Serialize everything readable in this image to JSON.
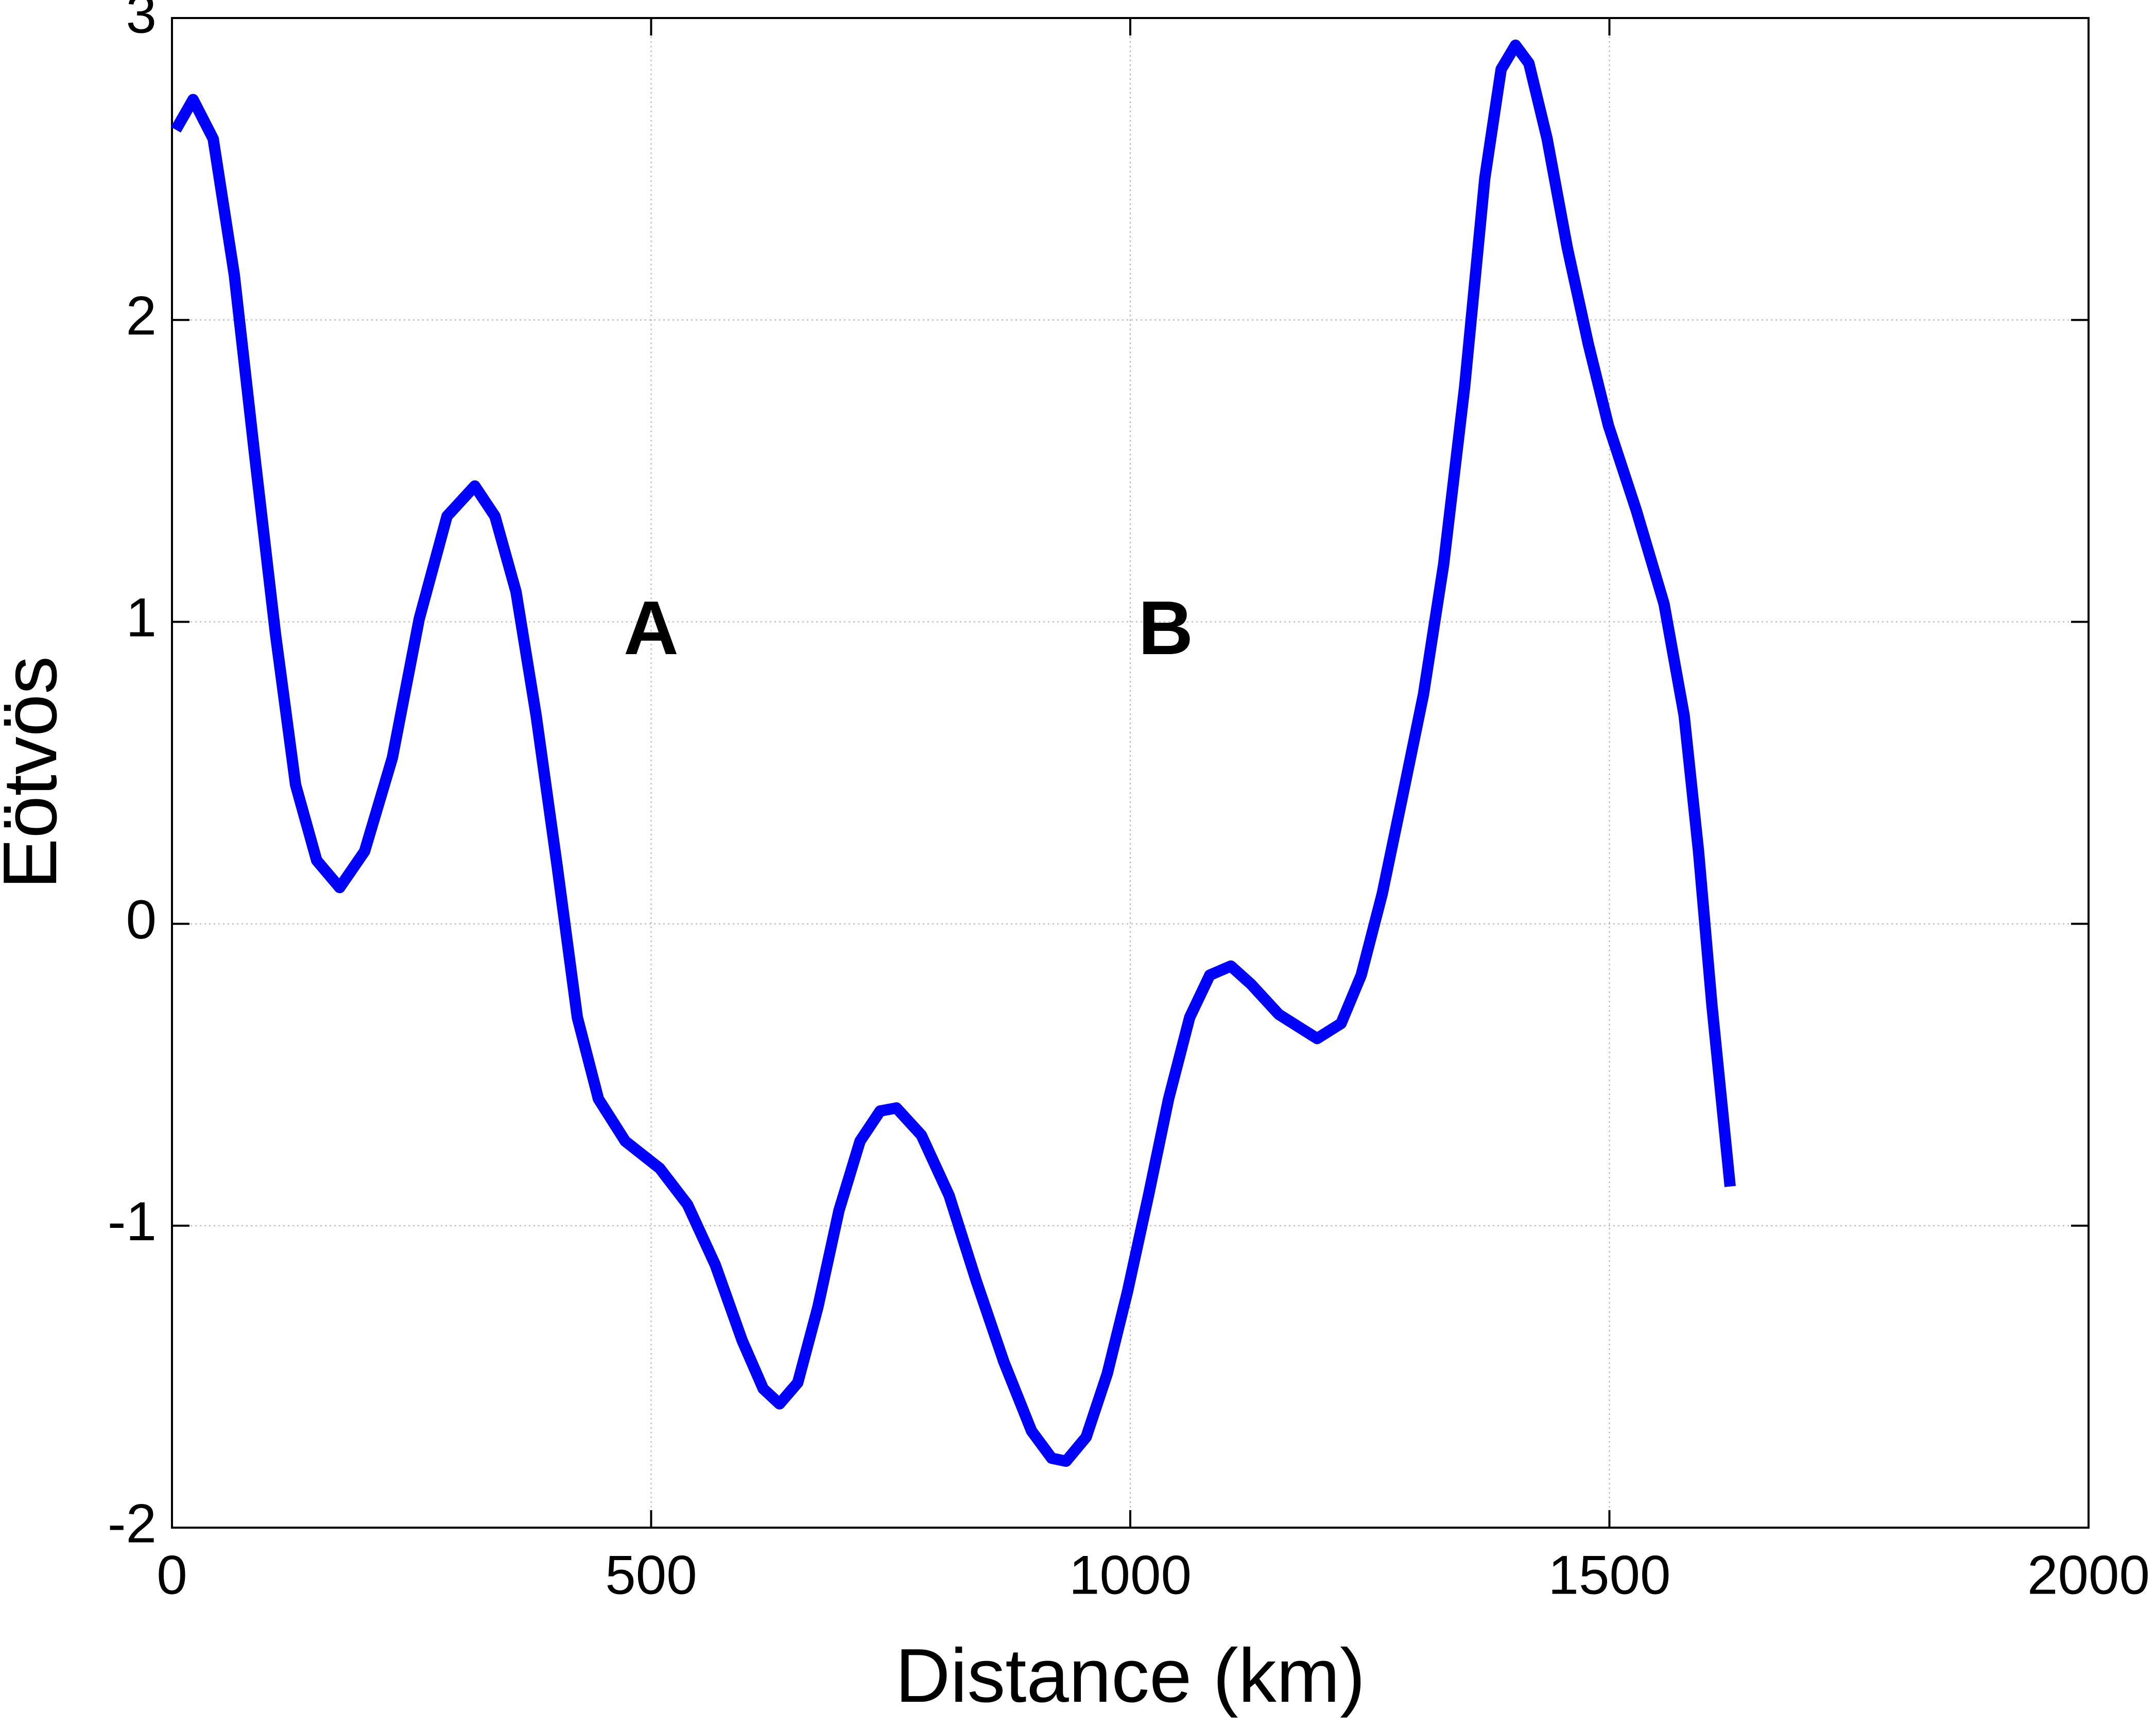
{
  "chart_data": {
    "type": "line",
    "xlabel": "Distance (km)",
    "ylabel": "Eötvös",
    "x": [
      4,
      22,
      43,
      65,
      86,
      108,
      129,
      151,
      175,
      201,
      230,
      258,
      287,
      316,
      337,
      359,
      380,
      402,
      423,
      445,
      473,
      509,
      538,
      567,
      595,
      617,
      634,
      653,
      674,
      696,
      718,
      739,
      756,
      782,
      811,
      839,
      868,
      897,
      918,
      933,
      954,
      976,
      997,
      1019,
      1040,
      1062,
      1083,
      1105,
      1126,
      1155,
      1195,
      1220,
      1241,
      1263,
      1284,
      1306,
      1327,
      1349,
      1370,
      1387,
      1402,
      1416,
      1435,
      1456,
      1478,
      1499,
      1528,
      1557,
      1578,
      1593,
      1607,
      1626
    ],
    "series": [
      {
        "color": "#0000ff",
        "values": [
          2.63,
          2.73,
          2.6,
          2.15,
          1.56,
          0.96,
          0.46,
          0.21,
          0.12,
          0.24,
          0.55,
          1.01,
          1.35,
          1.45,
          1.35,
          1.1,
          0.69,
          0.19,
          -0.31,
          -0.58,
          -0.72,
          -0.81,
          -0.93,
          -1.13,
          -1.38,
          -1.54,
          -1.59,
          -1.52,
          -1.27,
          -0.95,
          -0.72,
          -0.62,
          -0.61,
          -0.7,
          -0.9,
          -1.18,
          -1.45,
          -1.68,
          -1.77,
          -1.78,
          -1.7,
          -1.49,
          -1.22,
          -0.9,
          -0.58,
          -0.31,
          -0.17,
          -0.14,
          -0.2,
          -0.3,
          -0.38,
          -0.33,
          -0.17,
          0.1,
          0.42,
          0.76,
          1.19,
          1.78,
          2.47,
          2.83,
          2.91,
          2.85,
          2.6,
          2.24,
          1.92,
          1.65,
          1.37,
          1.06,
          0.69,
          0.24,
          -0.27,
          -0.87
        ]
      }
    ],
    "xlim": [
      0,
      2000
    ],
    "xticks": [
      0,
      500,
      1000,
      1500,
      2000
    ],
    "ylim": [
      -2,
      3
    ],
    "yticks": [
      -2,
      -1,
      0,
      1,
      2,
      3
    ],
    "grid": true,
    "annotations": [
      {
        "text": "A",
        "x": 500,
        "y": 0.96
      },
      {
        "text": "B",
        "x": 1037,
        "y": 0.96
      }
    ]
  }
}
